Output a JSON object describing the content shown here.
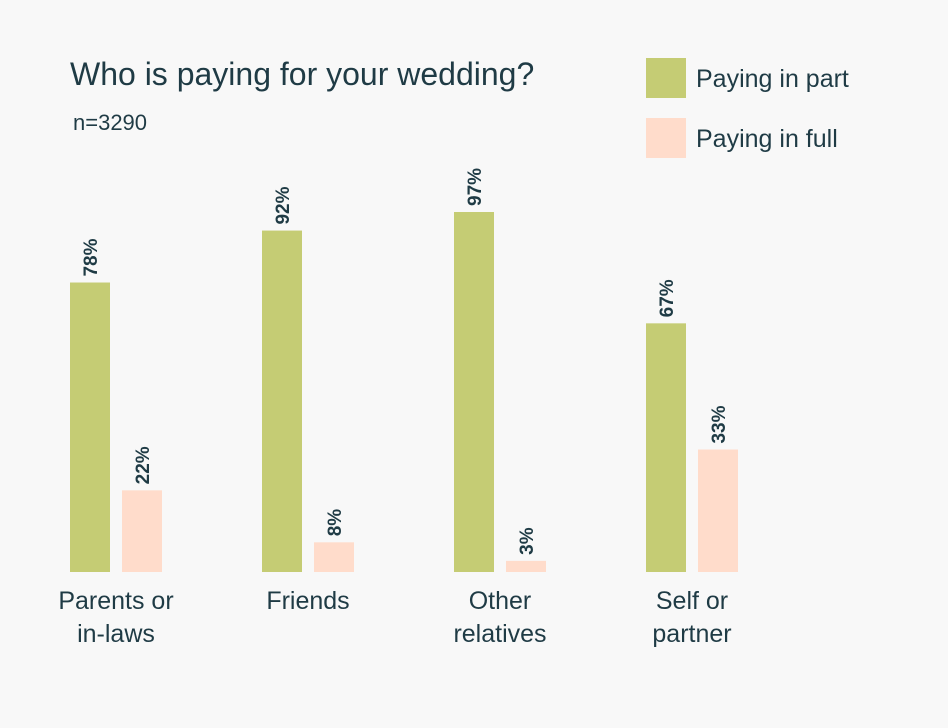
{
  "chart_data": {
    "type": "bar",
    "title": "Who is paying for your wedding?",
    "subtitle": "n=3290",
    "categories": [
      [
        "Parents or",
        "in-laws"
      ],
      [
        "Friends"
      ],
      [
        "Other",
        "relatives"
      ],
      [
        "Self or",
        "partner"
      ]
    ],
    "series": [
      {
        "name": "Paying in part",
        "color": "#c5cc74",
        "values": [
          78,
          92,
          97,
          67
        ],
        "labels": [
          "78%",
          "92%",
          "97%",
          "67%"
        ]
      },
      {
        "name": "Paying in full",
        "color": "#ffdccb",
        "values": [
          22,
          8,
          3,
          33
        ],
        "labels": [
          "22%",
          "8%",
          "3%",
          "33%"
        ]
      }
    ],
    "ylim": [
      0,
      100
    ],
    "grid": false,
    "legend_position": "top-right"
  }
}
